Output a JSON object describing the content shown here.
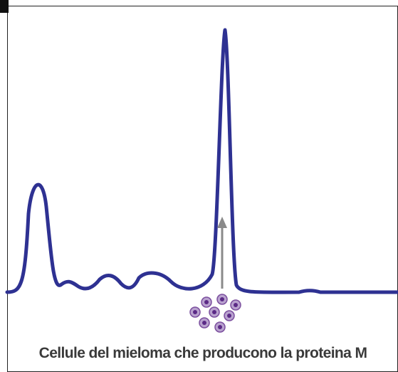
{
  "caption": "Cellule del mieloma che producono la proteina M"
}
